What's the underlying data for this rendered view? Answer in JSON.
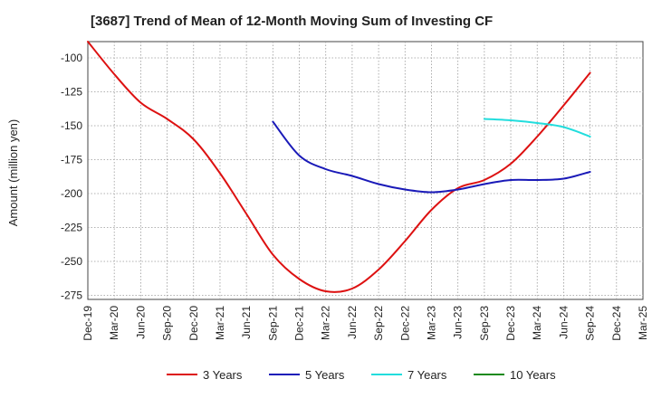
{
  "chart_data": {
    "type": "line",
    "title": "[3687]  Trend of Mean of 12-Month Moving Sum of Investing CF",
    "xlabel": "",
    "ylabel": "Amount (million yen)",
    "ylim": [
      -278,
      -88
    ],
    "yticks": [
      -100,
      -125,
      -150,
      -175,
      -200,
      -225,
      -250,
      -275
    ],
    "ytick_labels": [
      "-100",
      "-125",
      "-150",
      "-175",
      "-200",
      "-225",
      "-250",
      "-275"
    ],
    "grid": true,
    "legend_position": "bottom",
    "categories": [
      "Dec-19",
      "Mar-20",
      "Jun-20",
      "Sep-20",
      "Dec-20",
      "Mar-21",
      "Jun-21",
      "Sep-21",
      "Dec-21",
      "Mar-22",
      "Jun-22",
      "Sep-22",
      "Dec-22",
      "Mar-23",
      "Jun-23",
      "Sep-23",
      "Dec-23",
      "Mar-24",
      "Jun-24",
      "Sep-24",
      "Dec-24",
      "Mar-25"
    ],
    "series": [
      {
        "name": "3 Years",
        "color": "#dd1111",
        "values": [
          -88,
          -112,
          -133,
          -145,
          -160,
          -185,
          -215,
          -245,
          -263,
          -272,
          -270,
          -256,
          -235,
          -212,
          -196,
          -190,
          -178,
          -158,
          -135,
          -111,
          null,
          null
        ]
      },
      {
        "name": "5 Years",
        "color": "#1a1ab8",
        "values": [
          null,
          null,
          null,
          null,
          null,
          null,
          null,
          -147,
          -172,
          -182,
          -187,
          -193,
          -197,
          -199,
          -197,
          -193,
          -190,
          -190,
          -189,
          -184,
          null,
          null
        ]
      },
      {
        "name": "7 Years",
        "color": "#22dddd",
        "values": [
          null,
          null,
          null,
          null,
          null,
          null,
          null,
          null,
          null,
          null,
          null,
          null,
          null,
          null,
          null,
          -145,
          -146,
          -148,
          -151,
          -158,
          null,
          null
        ]
      },
      {
        "name": "10 Years",
        "color": "#1a8a1a",
        "values": [
          null,
          null,
          null,
          null,
          null,
          null,
          null,
          null,
          null,
          null,
          null,
          null,
          null,
          null,
          null,
          null,
          null,
          null,
          null,
          null,
          null,
          null
        ]
      }
    ]
  }
}
